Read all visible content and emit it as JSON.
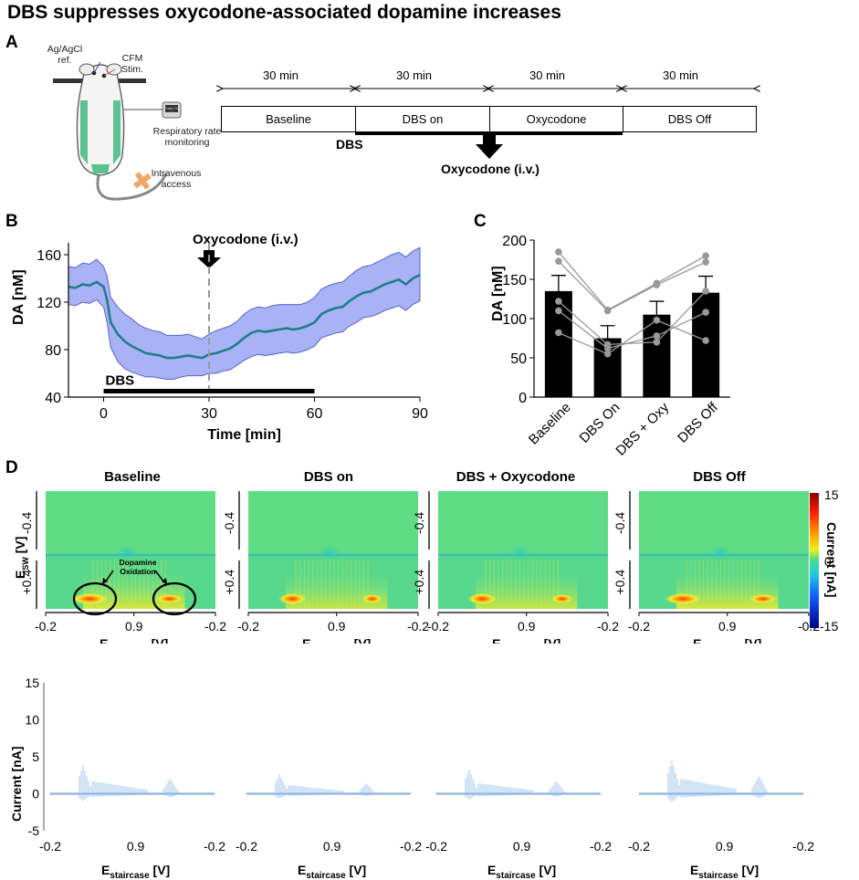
{
  "figure_title": "DBS suppresses oxycodone-associated dopamine increases",
  "panel_labels": [
    "A",
    "B",
    "C",
    "D"
  ],
  "panelA": {
    "mouse_labels": {
      "ref": "Ag/AgCl\nref.",
      "cfm": "CFM\nStim.",
      "resp": "Respiratory rate\nmonitoring",
      "iv": "Intravenous\naccess",
      "device": "Pulse Ox\n110"
    },
    "durations": [
      "30 min",
      "30 min",
      "30 min",
      "30 min"
    ],
    "phases": [
      "Baseline",
      "DBS on",
      "Oxycodone",
      "DBS Off"
    ],
    "dbs_label": "DBS",
    "oxy_label": "Oxycodone (i.v.)"
  },
  "chart_data": [
    {
      "id": "B",
      "type": "line",
      "title": "",
      "xlabel": "Time [min]",
      "ylabel": "DA [nM]",
      "xlim": [
        -10,
        90
      ],
      "ylim": [
        40,
        170
      ],
      "xticks": [
        0,
        30,
        60,
        90
      ],
      "yticks": [
        40,
        80,
        120,
        160
      ],
      "series": [
        {
          "name": "DA mean ± SEM",
          "x": [
            -10,
            -8,
            -6,
            -4,
            -2,
            0,
            1,
            2,
            4,
            6,
            8,
            10,
            12,
            14,
            16,
            18,
            20,
            22,
            24,
            26,
            28,
            30,
            32,
            34,
            36,
            38,
            40,
            42,
            44,
            46,
            48,
            50,
            52,
            54,
            56,
            58,
            60,
            62,
            64,
            66,
            68,
            70,
            72,
            74,
            76,
            78,
            80,
            82,
            84,
            86,
            88,
            90
          ],
          "values": [
            133,
            132,
            135,
            134,
            137,
            133,
            122,
            103,
            93,
            87,
            83,
            80,
            77,
            76,
            75,
            73,
            73,
            74,
            75,
            74,
            73,
            76,
            77,
            79,
            81,
            85,
            90,
            94,
            96,
            95,
            96,
            97,
            98,
            97,
            98,
            100,
            103,
            110,
            113,
            115,
            116,
            121,
            125,
            128,
            129,
            132,
            135,
            137,
            139,
            135,
            140,
            143
          ],
          "lower": [
            118,
            117,
            120,
            119,
            122,
            116,
            103,
            82,
            70,
            64,
            61,
            59,
            57,
            57,
            56,
            55,
            55,
            57,
            58,
            58,
            58,
            60,
            60,
            62,
            63,
            67,
            71,
            74,
            76,
            75,
            76,
            77,
            78,
            77,
            78,
            80,
            83,
            90,
            92,
            94,
            95,
            100,
            103,
            107,
            108,
            110,
            113,
            115,
            117,
            113,
            118,
            121
          ],
          "upper": [
            150,
            149,
            153,
            152,
            156,
            150,
            142,
            124,
            116,
            110,
            106,
            101,
            98,
            96,
            95,
            92,
            92,
            92,
            93,
            91,
            89,
            93,
            96,
            98,
            100,
            104,
            110,
            114,
            116,
            115,
            117,
            118,
            118,
            118,
            118,
            120,
            124,
            131,
            134,
            136,
            137,
            142,
            147,
            150,
            151,
            154,
            157,
            160,
            162,
            158,
            163,
            166
          ]
        }
      ],
      "annotations": {
        "bar_label": "DBS",
        "bar_range": [
          0,
          60
        ],
        "marker_label": "Oxycodone (i.v.)",
        "marker_x": 30
      },
      "colors": {
        "line": "#1d7f8a",
        "band": "#9ba5f5",
        "band_edge": "#5a63cc"
      }
    },
    {
      "id": "C",
      "type": "bar",
      "title": "",
      "xlabel": "",
      "ylabel": "DA [nM]",
      "ylim": [
        0,
        200
      ],
      "yticks": [
        0,
        50,
        100,
        150,
        200
      ],
      "categories": [
        "Baseline",
        "DBS On",
        "DBS + Oxy",
        "DBS Off"
      ],
      "values": [
        135,
        75,
        105,
        133
      ],
      "errors": [
        20,
        16,
        17,
        21
      ],
      "individual": [
        [
          185,
          111,
          145,
          180
        ],
        [
          173,
          110,
          143,
          172
        ],
        [
          122,
          67,
          70,
          135
        ],
        [
          110,
          62,
          78,
          108
        ],
        [
          82,
          55,
          98,
          72
        ]
      ],
      "colors": {
        "bar": "#000000",
        "lines": "#999999"
      }
    },
    {
      "id": "D-heatmaps",
      "type": "heatmap",
      "titles": [
        "Baseline",
        "DBS on",
        "DBS + Oxycodone",
        "DBS Off"
      ],
      "xlabel": "E_staircase [V]",
      "ylabel": "E_SW [V]",
      "xticks": [
        "-0.2",
        "0.9",
        "-0.2"
      ],
      "yticks": [
        "-0.4",
        "+0.4"
      ],
      "colorbar": {
        "label": "Current [nA]",
        "ticks": [
          "15",
          "0",
          "-15"
        ],
        "range": [
          -15,
          15
        ]
      },
      "annotation": "Dopamine\nOxidation",
      "hotspot_intensity": [
        1.0,
        0.65,
        0.7,
        1.0
      ]
    },
    {
      "id": "D-traces",
      "type": "line",
      "ylabel": "Current [nA]",
      "xlabel": "E_staircase [V]",
      "yticks": [
        -5,
        0,
        5,
        10,
        15
      ],
      "ylim": [
        -5,
        15
      ],
      "xticks": [
        "-0.2",
        "0.9",
        "-0.2"
      ],
      "peak_currents": [
        3.8,
        2.6,
        3.2,
        4.5
      ]
    }
  ]
}
